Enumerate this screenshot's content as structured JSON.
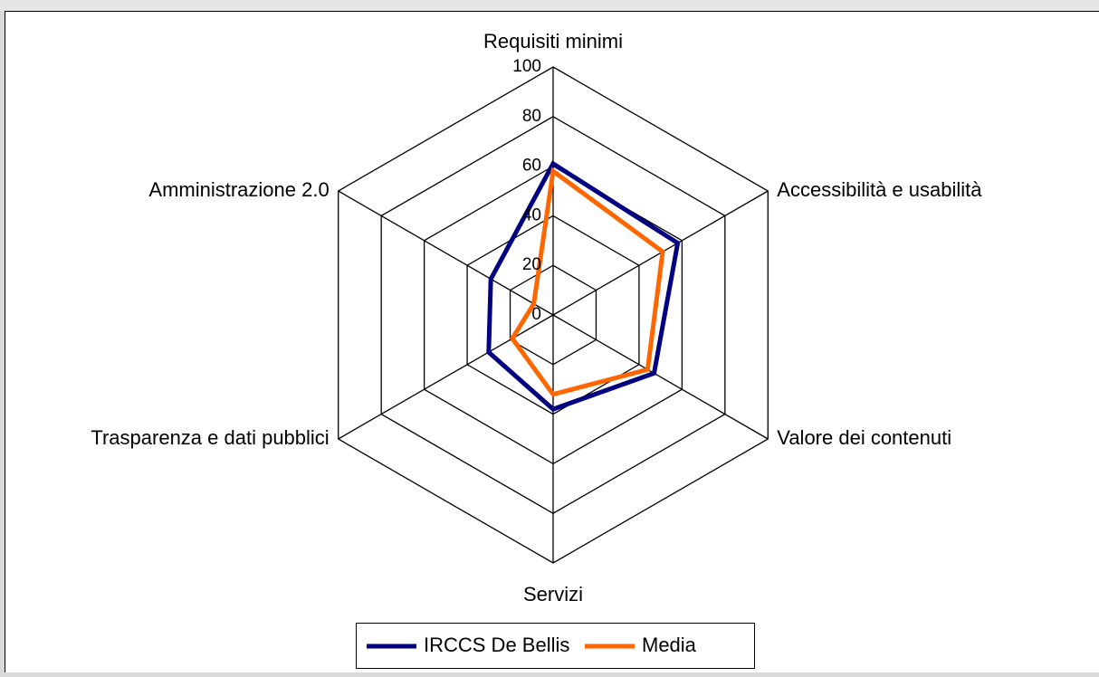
{
  "chart_data": {
    "type": "radar",
    "categories": [
      "Requisiti minimi",
      "Accessibilità e usabilità",
      "Valore dei contenuti",
      "Servizi",
      "Trasparenza e dati pubblici",
      "Amministrazione 2.0"
    ],
    "series": [
      {
        "name": "IRCCS De Bellis",
        "color": "#000080",
        "values": [
          61,
          58,
          47,
          38,
          30,
          29
        ]
      },
      {
        "name": "Media",
        "color": "#ff6600",
        "values": [
          58,
          51,
          44,
          32,
          19,
          9
        ]
      }
    ],
    "ylim": [
      0,
      100
    ],
    "yticks": [
      0,
      20,
      40,
      60,
      80,
      100
    ],
    "grid": true,
    "legend": "bottom"
  }
}
